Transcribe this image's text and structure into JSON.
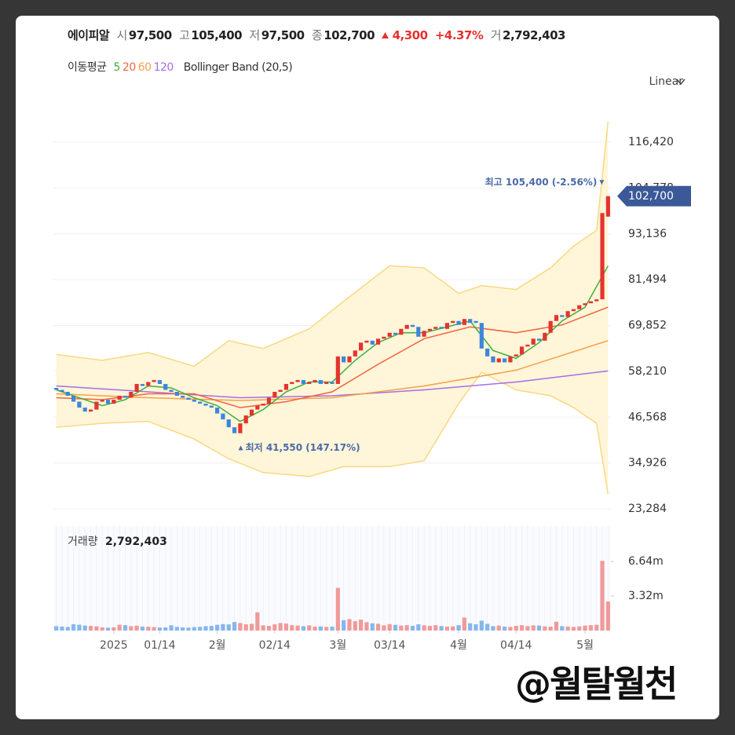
{
  "header": {
    "name": "에이피알",
    "open_label": "시",
    "open": "97,500",
    "high_label": "고",
    "high": "105,400",
    "low_label": "저",
    "low": "97,500",
    "close_label": "종",
    "close": "102,700",
    "change": "4,300",
    "change_pct": "+4.37%",
    "volume_label": "거",
    "volume": "2,792,403",
    "ma_label": "이동평균",
    "scale": "Linear"
  },
  "watermark": "@월탈월천",
  "chart_data": {
    "type": "candlestick",
    "up_color": "#e5332e",
    "down_color": "#3d86dc",
    "xlim": [
      -0.5,
      96.5
    ],
    "xticks": [
      {
        "value": 10,
        "label": "2025"
      },
      {
        "value": 18,
        "label": "01/14"
      },
      {
        "value": 28,
        "label": "2월"
      },
      {
        "value": 38,
        "label": "02/14"
      },
      {
        "value": 49,
        "label": "3월"
      },
      {
        "value": 58,
        "label": "03/14"
      },
      {
        "value": 70,
        "label": "4월"
      },
      {
        "value": 80,
        "label": "04/14"
      },
      {
        "value": 92,
        "label": "5월"
      }
    ],
    "ylim": [
      23284,
      124600
    ],
    "yticks": [
      {
        "value": 23284,
        "label": "23,284"
      },
      {
        "value": 34926,
        "label": "34,926"
      },
      {
        "value": 46568,
        "label": "46,568"
      },
      {
        "value": 58210,
        "label": "58,210"
      },
      {
        "value": 69852,
        "label": "69,852"
      },
      {
        "value": 81494,
        "label": "81,494"
      },
      {
        "value": 93136,
        "label": "93,136"
      },
      {
        "value": 104778,
        "label": "104,778"
      },
      {
        "value": 116420,
        "label": "116,420"
      }
    ],
    "grid": true,
    "open": [
      54000,
      53500,
      53000,
      52000,
      50500,
      49000,
      48000,
      48500,
      50500,
      51000,
      50000,
      51000,
      52000,
      51500,
      53000,
      55000,
      54500,
      55500,
      56000,
      55000,
      53500,
      53000,
      52000,
      51500,
      51000,
      50500,
      50000,
      49500,
      49000,
      47500,
      46000,
      44000,
      42500,
      45000,
      47000,
      48500,
      49500,
      50000,
      51500,
      53000,
      53500,
      55000,
      55500,
      56000,
      55000,
      55500,
      56000,
      55000,
      55500,
      55000,
      62000,
      60500,
      62000,
      63500,
      65500,
      66000,
      65000,
      66500,
      67000,
      68000,
      67500,
      69000,
      70000,
      69500,
      67000,
      68500,
      69000,
      69500,
      69000,
      70500,
      71000,
      70000,
      71500,
      71000,
      70500,
      64000,
      62000,
      60500,
      61500,
      60500,
      62000,
      62500,
      64500,
      65000,
      66500,
      66000,
      68000,
      71000,
      72500,
      72000,
      73500,
      74000,
      75000,
      75500,
      76000,
      76500,
      97500
    ],
    "close": [
      53500,
      53000,
      52000,
      50500,
      49000,
      48000,
      48500,
      50500,
      51000,
      50000,
      51000,
      52000,
      51500,
      53000,
      55000,
      54500,
      55500,
      56000,
      55000,
      53500,
      53000,
      52000,
      51500,
      51000,
      50500,
      50000,
      49500,
      49000,
      47500,
      46000,
      44000,
      42500,
      45000,
      47000,
      48500,
      49500,
      50000,
      51500,
      53000,
      53500,
      55000,
      55500,
      56000,
      55000,
      55500,
      56000,
      55000,
      55500,
      55000,
      62000,
      60500,
      62000,
      63500,
      65500,
      66000,
      65000,
      66500,
      67000,
      68000,
      67500,
      69000,
      70000,
      69500,
      67000,
      68500,
      69000,
      69500,
      69000,
      70500,
      71000,
      70000,
      71500,
      70500,
      70500,
      64000,
      62000,
      60500,
      61500,
      60500,
      62000,
      62500,
      64500,
      65000,
      66500,
      66000,
      68000,
      71000,
      72500,
      72000,
      73500,
      74000,
      75000,
      75500,
      76000,
      76500,
      98400,
      102700
    ],
    "last_label": "102,700",
    "legend_title": "이동평균",
    "overlays": [
      {
        "name": "5",
        "color": "#3fae3f",
        "x": [
          0,
          4,
          8,
          12,
          16,
          20,
          24,
          28,
          32,
          36,
          40,
          44,
          48,
          52,
          56,
          60,
          64,
          68,
          72,
          76,
          80,
          84,
          88,
          92,
          96
        ],
        "values": [
          53500,
          51500,
          49500,
          51000,
          54500,
          54000,
          51500,
          49500,
          45500,
          48500,
          53000,
          55500,
          55500,
          61000,
          65500,
          68000,
          68000,
          69500,
          71000,
          63500,
          61500,
          65500,
          71000,
          74500,
          85000
        ]
      },
      {
        "name": "20",
        "color": "#f0643c",
        "x": [
          0,
          8,
          16,
          24,
          32,
          40,
          48,
          56,
          64,
          72,
          80,
          88,
          96
        ],
        "values": [
          51500,
          51000,
          52500,
          52500,
          49000,
          50500,
          53000,
          60000,
          66500,
          69500,
          68000,
          70000,
          74500
        ]
      },
      {
        "name": "60",
        "color": "#f5a04a",
        "x": [
          0,
          16,
          32,
          48,
          64,
          80,
          96
        ],
        "values": [
          52500,
          51500,
          50800,
          51500,
          54500,
          58500,
          66000
        ]
      },
      {
        "name": "120",
        "color": "#a56ee6",
        "x": [
          0,
          16,
          32,
          48,
          64,
          80,
          96
        ],
        "values": [
          54500,
          53000,
          51500,
          52000,
          53500,
          55500,
          58300
        ]
      }
    ],
    "band": {
      "name": "Bollinger Band (20,5)",
      "color": "#f8d982",
      "fill": "#fff5d9",
      "x": [
        0,
        8,
        16,
        24,
        30,
        36,
        44,
        50,
        58,
        64,
        70,
        74,
        80,
        86,
        90,
        94,
        96
      ],
      "upper": [
        62500,
        61000,
        63000,
        59500,
        66000,
        64000,
        69000,
        76000,
        85000,
        84500,
        78000,
        80000,
        79000,
        84500,
        90000,
        94000,
        121600
      ],
      "lower": [
        44000,
        45000,
        45500,
        41000,
        36000,
        32500,
        31500,
        34000,
        34000,
        35500,
        50000,
        58000,
        53500,
        52000,
        49000,
        45000,
        27000
      ]
    },
    "annotations": [
      {
        "text": "최고 105,400 (-2.56%)",
        "x": 96,
        "y": 105400
      },
      {
        "text": "최저 41,550 (147.17%)",
        "x": 31,
        "y": 41550
      }
    ],
    "volume": {
      "title": "거래량",
      "last_label": "2,792,403",
      "up_color": "#ef9a9a",
      "down_color": "#86b7ec",
      "ylim": [
        0,
        10040000
      ],
      "yticks": [
        {
          "value": 3320000,
          "label": "3.32m"
        },
        {
          "value": 6640000,
          "label": "6.64m"
        }
      ],
      "values": [
        420000,
        380000,
        350000,
        610000,
        560000,
        480000,
        450000,
        400000,
        300000,
        280000,
        310000,
        560000,
        520000,
        420000,
        470000,
        380000,
        360000,
        330000,
        290000,
        300000,
        510000,
        350000,
        300000,
        280000,
        330000,
        360000,
        420000,
        450000,
        550000,
        620000,
        590000,
        820000,
        720000,
        600000,
        650000,
        1750000,
        500000,
        450000,
        600000,
        720000,
        680000,
        520000,
        480000,
        420000,
        500000,
        380000,
        400000,
        350000,
        380000,
        4100000,
        1000000,
        1100000,
        900000,
        1050000,
        800000,
        700000,
        650000,
        500000,
        620000,
        550000,
        480000,
        520000,
        450000,
        600000,
        500000,
        450000,
        520000,
        430000,
        380000,
        400000,
        520000,
        1250000,
        700000,
        600000,
        950000,
        650000,
        420000,
        480000,
        380000,
        350000,
        450000,
        520000,
        430000,
        500000,
        480000,
        400000,
        380000,
        850000,
        420000,
        380000,
        350000,
        400000,
        480000,
        520000,
        550000,
        6700000,
        2792403
      ]
    }
  }
}
